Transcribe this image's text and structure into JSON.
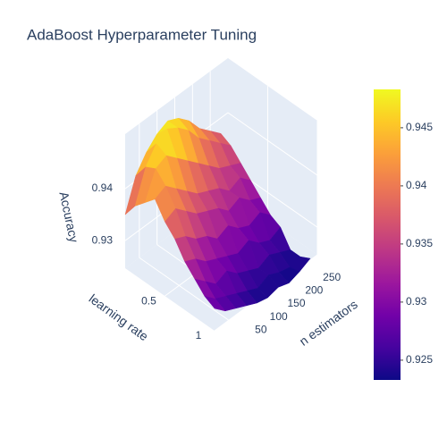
{
  "chart_data": {
    "type": "surface",
    "title": "AdaBoost Hyperparameter Tuning",
    "x_label": "n estimators",
    "y_label": "learning rate",
    "z_label": "Accuracy",
    "x": [
      10,
      40,
      70,
      100,
      130,
      160,
      190,
      220,
      250,
      280
    ],
    "y": [
      0.1,
      0.2,
      0.3,
      0.4,
      0.5,
      0.6,
      0.7,
      0.8,
      0.9,
      1.0
    ],
    "z": [
      [
        0.935,
        0.941,
        0.944,
        0.946,
        0.947,
        0.946,
        0.944,
        0.941,
        0.939,
        0.937
      ],
      [
        0.938,
        0.944,
        0.947,
        0.9483,
        0.947,
        0.945,
        0.942,
        0.94,
        0.938,
        0.936
      ],
      [
        0.94,
        0.945,
        0.946,
        0.944,
        0.942,
        0.94,
        0.938,
        0.936,
        0.935,
        0.934
      ],
      [
        0.942,
        0.943,
        0.941,
        0.939,
        0.937,
        0.936,
        0.935,
        0.933,
        0.934,
        0.932
      ],
      [
        0.939,
        0.94,
        0.938,
        0.936,
        0.935,
        0.934,
        0.932,
        0.933,
        0.931,
        0.93
      ],
      [
        0.937,
        0.936,
        0.934,
        0.933,
        0.931,
        0.932,
        0.93,
        0.929,
        0.93,
        0.928
      ],
      [
        0.934,
        0.933,
        0.931,
        0.93,
        0.929,
        0.928,
        0.929,
        0.927,
        0.926,
        0.927
      ],
      [
        0.932,
        0.93,
        0.928,
        0.929,
        0.927,
        0.926,
        0.925,
        0.926,
        0.925,
        0.924
      ],
      [
        0.93,
        0.928,
        0.927,
        0.926,
        0.925,
        0.924,
        0.925,
        0.924,
        0.9235,
        0.924
      ],
      [
        0.929,
        0.927,
        0.926,
        0.925,
        0.924,
        0.9235,
        0.924,
        0.9233,
        0.924,
        0.925
      ]
    ],
    "xlim": [
      10,
      300
    ],
    "xticks": [
      50,
      100,
      150,
      200,
      250
    ],
    "ylim": [
      0.1,
      1
    ],
    "yticks": [
      0.5,
      1
    ],
    "zlim": [
      0.9247,
      0.9505
    ],
    "zticks": [
      0.93,
      0.94
    ],
    "colorbar_range": [
      0.9233,
      0.9483
    ],
    "colorbar_ticks": [
      0.925,
      0.93,
      0.935,
      0.94,
      0.945
    ],
    "colorscale": [
      "#0d0887",
      "#46039f",
      "#7201a8",
      "#9c179e",
      "#bd3786",
      "#d8576b",
      "#ed7953",
      "#fb9f3a",
      "#fdca26",
      "#f0f921"
    ],
    "grid": true
  }
}
